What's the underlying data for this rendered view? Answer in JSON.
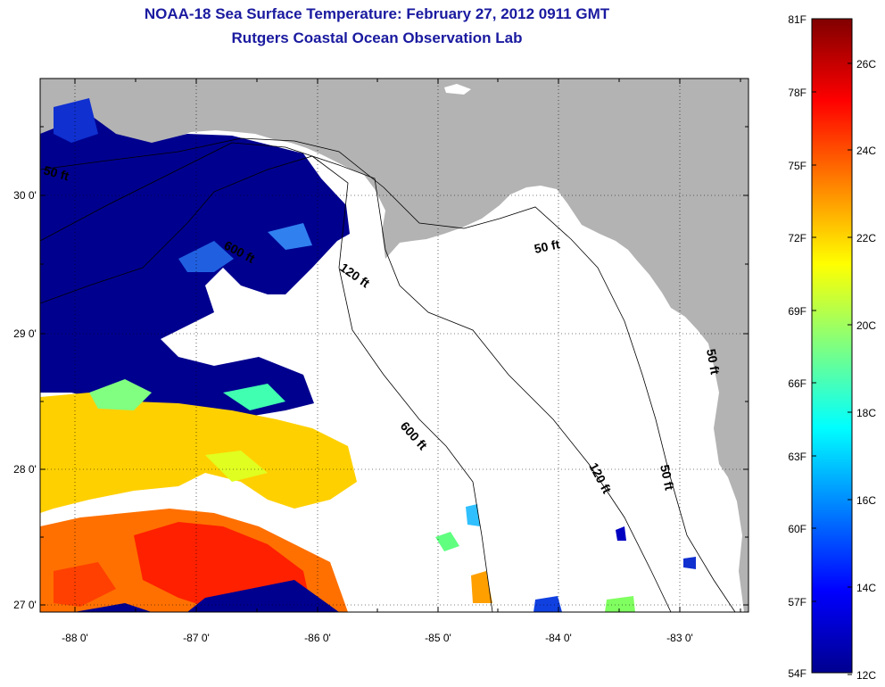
{
  "title": {
    "line1": "NOAA-18 Sea Surface Temperature:  February 27, 2012 0911 GMT",
    "line2": "Rutgers Coastal Ocean Observation Lab"
  },
  "map": {
    "lat_ticks": [
      "30 0'",
      "29 0'",
      "28 0'",
      "27 0'"
    ],
    "lon_ticks": [
      "-88 0'",
      "-87 0'",
      "-86 0'",
      "-85 0'",
      "-84 0'",
      "-83 0'"
    ],
    "contour_labels": [
      "50 ft",
      "600 ft",
      "120 ft",
      "50 ft",
      "600 ft",
      "120 ft",
      "50 ft",
      "50 ft"
    ]
  },
  "colorbar": {
    "fahrenheit_labels": [
      "81F",
      "78F",
      "75F",
      "72F",
      "69F",
      "66F",
      "63F",
      "60F",
      "57F",
      "54F"
    ],
    "celsius_labels": [
      "26C",
      "24C",
      "22C",
      "20C",
      "18C",
      "16C",
      "14C",
      "12C"
    ]
  },
  "colors": {
    "title": "#1a1aa0",
    "land": "#b3b3b3",
    "cloud": "#ffffff",
    "cold": "#00008f",
    "warm": "#ff2000"
  }
}
